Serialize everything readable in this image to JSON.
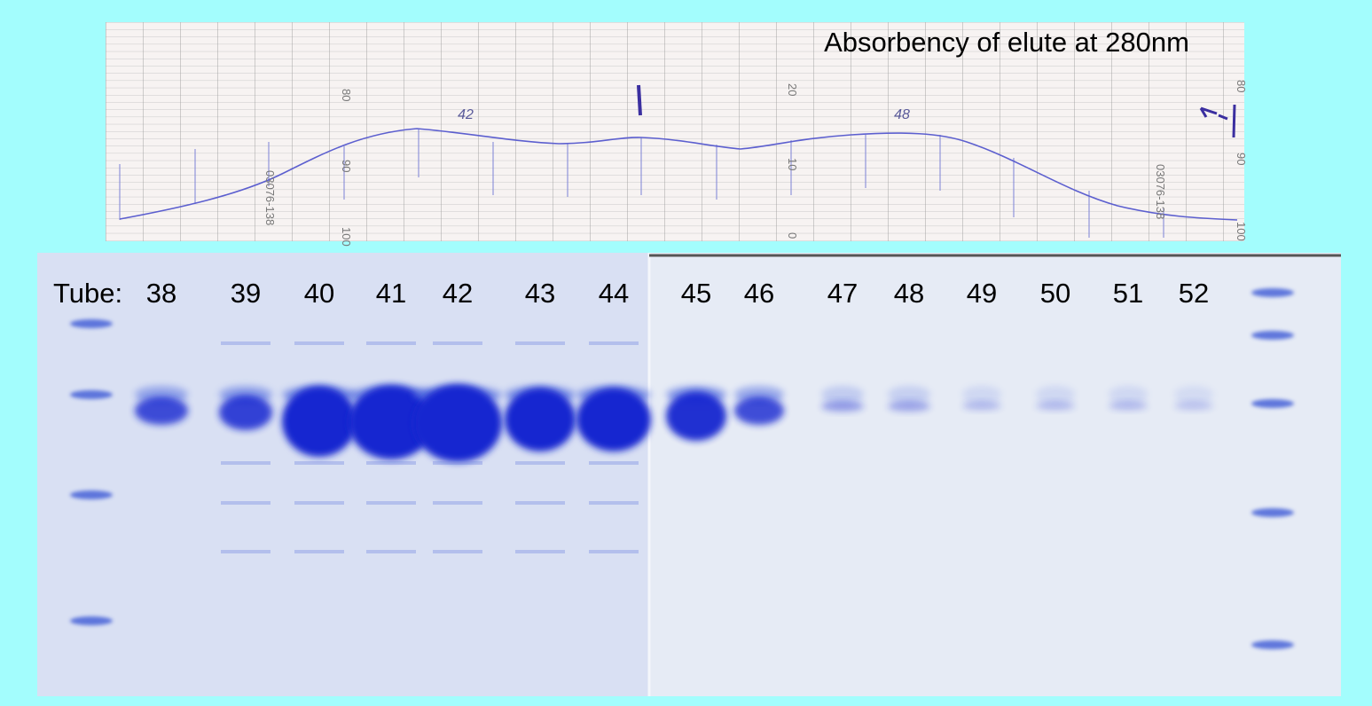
{
  "trace": {
    "title": "Absorbency of elute at 280nm",
    "peak_labels": [
      "42",
      "48"
    ],
    "left_scale": [
      "80",
      "90",
      "100"
    ],
    "mid_scale": [
      "20",
      "10",
      "0"
    ],
    "right_scale": [
      "80",
      "90",
      "100"
    ],
    "paper_codes": [
      "03076-138",
      "03076-138"
    ]
  },
  "gel": {
    "prefix": "Tube:",
    "lanes": [
      "38",
      "39",
      "40",
      "41",
      "42",
      "43",
      "44",
      "45",
      "46",
      "47",
      "48",
      "49",
      "50",
      "51",
      "52"
    ]
  }
}
